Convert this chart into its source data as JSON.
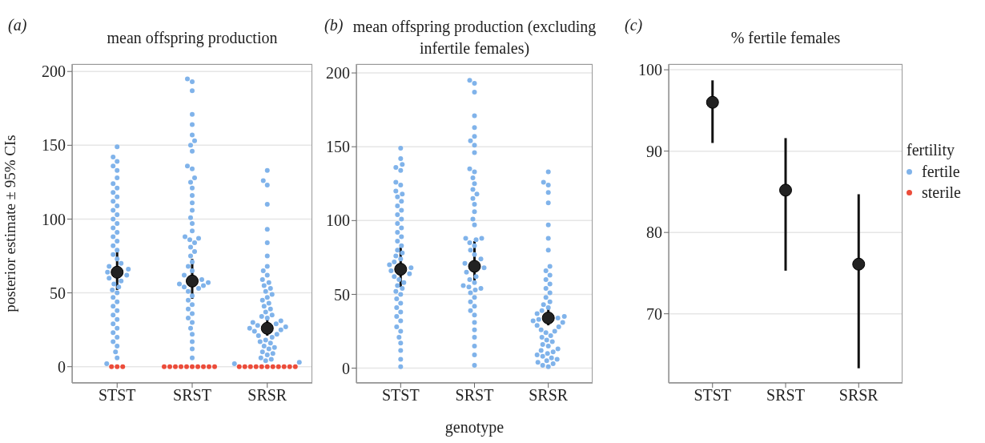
{
  "chart_data": [
    {
      "type": "scatter",
      "title": "mean offspring production",
      "ylabel": "posterior estimate ± 95% CIs",
      "annotations": [
        "(a)"
      ],
      "categories": [
        "STST",
        "SRST",
        "SRSR"
      ],
      "ylim": [
        -11,
        205
      ],
      "yticks": [
        0,
        50,
        100,
        150,
        200
      ],
      "grid": "y",
      "marker": "circle",
      "legend": "right",
      "legend_title": "fertility",
      "series": [
        {
          "name": "fertile",
          "color": "#80b3ea",
          "x": [
            "STST",
            "STST",
            "STST",
            "STST",
            "STST",
            "STST",
            "STST",
            "STST",
            "STST",
            "STST",
            "STST",
            "STST",
            "STST",
            "STST",
            "STST",
            "STST",
            "STST",
            "STST",
            "STST",
            "STST",
            "STST",
            "STST",
            "STST",
            "STST",
            "STST",
            "STST",
            "STST",
            "STST",
            "STST",
            "STST",
            "STST",
            "STST",
            "STST",
            "STST",
            "STST",
            "STST",
            "STST",
            "STST",
            "STST",
            "STST",
            "STST",
            "STST",
            "STST",
            "STST",
            "STST",
            "STST",
            "STST",
            "STST",
            "STST",
            "STST",
            "SRST",
            "SRST",
            "SRST",
            "SRST",
            "SRST",
            "SRST",
            "SRST",
            "SRST",
            "SRST",
            "SRST",
            "SRST",
            "SRST",
            "SRST",
            "SRST",
            "SRST",
            "SRST",
            "SRST",
            "SRST",
            "SRST",
            "SRST",
            "SRST",
            "SRST",
            "SRST",
            "SRST",
            "SRST",
            "SRST",
            "SRST",
            "SRST",
            "SRST",
            "SRST",
            "SRST",
            "SRST",
            "SRST",
            "SRST",
            "SRST",
            "SRST",
            "SRST",
            "SRST",
            "SRST",
            "SRST",
            "SRST",
            "SRST",
            "SRST",
            "SRST",
            "SRST",
            "SRST",
            "SRST",
            "SRST",
            "SRST",
            "SRST",
            "SRSR",
            "SRSR",
            "SRSR",
            "SRSR",
            "SRSR",
            "SRSR",
            "SRSR",
            "SRSR",
            "SRSR",
            "SRSR",
            "SRSR",
            "SRSR",
            "SRSR",
            "SRSR",
            "SRSR",
            "SRSR",
            "SRSR",
            "SRSR",
            "SRSR",
            "SRSR",
            "SRSR",
            "SRSR",
            "SRSR",
            "SRSR",
            "SRSR",
            "SRSR",
            "SRSR",
            "SRSR",
            "SRSR",
            "SRSR",
            "SRSR",
            "SRSR",
            "SRSR",
            "SRSR",
            "SRSR",
            "SRSR",
            "SRSR",
            "SRSR",
            "SRSR",
            "SRSR",
            "SRSR",
            "SRSR",
            "SRSR",
            "SRSR",
            "SRSR",
            "SRSR",
            "SRSR",
            "SRSR",
            "SRSR",
            "SRSR"
          ],
          "values": [
            149,
            142,
            139,
            136,
            133,
            128,
            124,
            121,
            118,
            115,
            112,
            109,
            106,
            103,
            100,
            97,
            94,
            91,
            88,
            85,
            82,
            79,
            76,
            73,
            70,
            68,
            66,
            64,
            62,
            60,
            58,
            56,
            54,
            52,
            50,
            47,
            44,
            41,
            38,
            35,
            32,
            29,
            26,
            23,
            20,
            17,
            14,
            10,
            6,
            2,
            195,
            193,
            187,
            171,
            164,
            157,
            153,
            150,
            146,
            136,
            134,
            128,
            125,
            121,
            116,
            111,
            106,
            101,
            97,
            92,
            88,
            87,
            86,
            84,
            81,
            78,
            75,
            71,
            68,
            65,
            62,
            59,
            57,
            56,
            55,
            54,
            53,
            51,
            48,
            45,
            42,
            39,
            36,
            33,
            30,
            26,
            22,
            17,
            12,
            6,
            133,
            126,
            123,
            110,
            93,
            84,
            75,
            68,
            65,
            62,
            59,
            57,
            55,
            53,
            51,
            49,
            47,
            45,
            43,
            41,
            39,
            37,
            35,
            34,
            33,
            31,
            30,
            29,
            28,
            27,
            26,
            25,
            24,
            22,
            21,
            20,
            18,
            17,
            16,
            14,
            13,
            12,
            10,
            9,
            8,
            6,
            5,
            4,
            3,
            2
          ]
        },
        {
          "name": "sterile",
          "color": "#ec4c3a",
          "x": [
            "STST",
            "STST",
            "STST",
            "SRST",
            "SRST",
            "SRST",
            "SRST",
            "SRST",
            "SRST",
            "SRST",
            "SRST",
            "SRST",
            "SRST",
            "SRSR",
            "SRSR",
            "SRSR",
            "SRSR",
            "SRSR",
            "SRSR",
            "SRSR",
            "SRSR",
            "SRSR",
            "SRSR",
            "SRSR"
          ],
          "values": [
            0,
            0,
            0,
            0,
            0,
            0,
            0,
            0,
            0,
            0,
            0,
            0,
            0,
            0,
            0,
            0,
            0,
            0,
            0,
            0,
            0,
            0,
            0,
            0
          ]
        },
        {
          "color": "#222222",
          "x": [
            "STST",
            "SRST",
            "SRSR"
          ],
          "values": [
            64,
            58,
            26
          ],
          "errors": [
            [
              52,
              78
            ],
            [
              46,
              73
            ],
            [
              21,
              32
            ]
          ]
        }
      ]
    },
    {
      "type": "scatter",
      "title": "mean offspring production (excluding infertile females)",
      "xlabel": "genotype",
      "annotations": [
        "(b)"
      ],
      "categories": [
        "STST",
        "SRST",
        "SRSR"
      ],
      "ylim": [
        -10,
        206
      ],
      "yticks": [
        0,
        50,
        100,
        150,
        200
      ],
      "grid": "y",
      "marker": "circle",
      "series": [
        {
          "color": "#80b3ea",
          "x": [
            "STST",
            "STST",
            "STST",
            "STST",
            "STST",
            "STST",
            "STST",
            "STST",
            "STST",
            "STST",
            "STST",
            "STST",
            "STST",
            "STST",
            "STST",
            "STST",
            "STST",
            "STST",
            "STST",
            "STST",
            "STST",
            "STST",
            "STST",
            "STST",
            "STST",
            "STST",
            "STST",
            "STST",
            "STST",
            "STST",
            "STST",
            "STST",
            "STST",
            "STST",
            "STST",
            "STST",
            "STST",
            "STST",
            "STST",
            "STST",
            "STST",
            "STST",
            "STST",
            "STST",
            "STST",
            "STST",
            "STST",
            "STST",
            "STST",
            "STST",
            "SRST",
            "SRST",
            "SRST",
            "SRST",
            "SRST",
            "SRST",
            "SRST",
            "SRST",
            "SRST",
            "SRST",
            "SRST",
            "SRST",
            "SRST",
            "SRST",
            "SRST",
            "SRST",
            "SRST",
            "SRST",
            "SRST",
            "SRST",
            "SRST",
            "SRST",
            "SRST",
            "SRST",
            "SRST",
            "SRST",
            "SRST",
            "SRST",
            "SRST",
            "SRST",
            "SRST",
            "SRST",
            "SRST",
            "SRST",
            "SRST",
            "SRST",
            "SRST",
            "SRST",
            "SRST",
            "SRST",
            "SRST",
            "SRST",
            "SRST",
            "SRST",
            "SRST",
            "SRST",
            "SRST",
            "SRST",
            "SRST",
            "SRST",
            "SRSR",
            "SRSR",
            "SRSR",
            "SRSR",
            "SRSR",
            "SRSR",
            "SRSR",
            "SRSR",
            "SRSR",
            "SRSR",
            "SRSR",
            "SRSR",
            "SRSR",
            "SRSR",
            "SRSR",
            "SRSR",
            "SRSR",
            "SRSR",
            "SRSR",
            "SRSR",
            "SRSR",
            "SRSR",
            "SRSR",
            "SRSR",
            "SRSR",
            "SRSR",
            "SRSR",
            "SRSR",
            "SRSR",
            "SRSR",
            "SRSR",
            "SRSR",
            "SRSR",
            "SRSR",
            "SRSR",
            "SRSR",
            "SRSR",
            "SRSR",
            "SRSR",
            "SRSR",
            "SRSR",
            "SRSR",
            "SRSR",
            "SRSR",
            "SRSR",
            "SRSR",
            "SRSR",
            "SRSR",
            "SRSR",
            "SRSR"
          ],
          "values": [
            149,
            142,
            138,
            136,
            134,
            126,
            124,
            120,
            118,
            116,
            113,
            110,
            107,
            104,
            101,
            98,
            95,
            92,
            89,
            86,
            83,
            80,
            78,
            76,
            74,
            72,
            70,
            68,
            66,
            64,
            62,
            60,
            58,
            56,
            54,
            52,
            50,
            47,
            44,
            41,
            38,
            35,
            32,
            28,
            25,
            21,
            17,
            12,
            6,
            1,
            195,
            193,
            187,
            171,
            163,
            157,
            154,
            151,
            146,
            135,
            133,
            129,
            125,
            121,
            118,
            115,
            111,
            106,
            101,
            97,
            88,
            88,
            87,
            85,
            83,
            80,
            77,
            74,
            71,
            68,
            65,
            62,
            60,
            58,
            56,
            55,
            54,
            53,
            51,
            48,
            45,
            42,
            39,
            36,
            31,
            26,
            21,
            15,
            9,
            2,
            133,
            126,
            124,
            119,
            112,
            97,
            88,
            80,
            69,
            66,
            63,
            60,
            57,
            54,
            51,
            48,
            45,
            43,
            41,
            39,
            37,
            35,
            34,
            33,
            32,
            31,
            29,
            28,
            26,
            25,
            24,
            22,
            21,
            19,
            18,
            16,
            15,
            13,
            12,
            11,
            10,
            9,
            8,
            7,
            6,
            5,
            4,
            3,
            2,
            1
          ]
        },
        {
          "color": "#222222",
          "x": [
            "STST",
            "SRST",
            "SRSR"
          ],
          "values": [
            67,
            69,
            34
          ],
          "errors": [
            [
              55,
              82
            ],
            [
              57,
              86
            ],
            [
              29,
              42
            ]
          ]
        }
      ]
    },
    {
      "type": "scatter",
      "title": "% fertile females",
      "annotations": [
        "(c)"
      ],
      "categories": [
        "STST",
        "SRST",
        "SRSR"
      ],
      "ylim": [
        61.5,
        100.7
      ],
      "yticks": [
        70,
        80,
        90,
        100
      ],
      "grid": "y",
      "marker": "circle",
      "series": [
        {
          "color": "#222222",
          "x": [
            "STST",
            "SRST",
            "SRSR"
          ],
          "values": [
            96,
            85.2,
            76.1
          ],
          "errors": [
            [
              91,
              98.7
            ],
            [
              75.3,
              91.6
            ],
            [
              63.3,
              84.7
            ]
          ]
        }
      ]
    }
  ]
}
